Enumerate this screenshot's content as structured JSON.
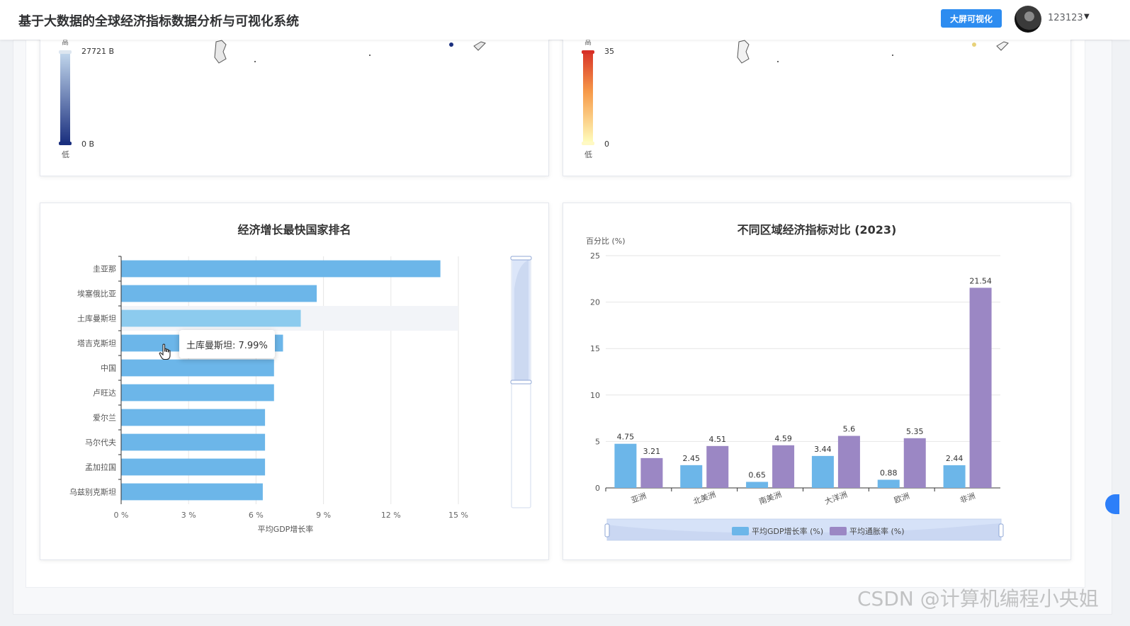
{
  "header": {
    "title": "基于大数据的全球经济指标数据分析与可视化系统",
    "screen_button": "大屏可视化",
    "username": "123123"
  },
  "maps": {
    "left": {
      "max_label": "27721 B",
      "min_label": "0 B",
      "low_label": "低",
      "high_label": "高",
      "colors": [
        "#c6dbef",
        "#1a2f7e"
      ]
    },
    "right": {
      "max_label": "35",
      "min_label": "0",
      "low_label": "低",
      "high_label": "高",
      "colors": [
        "#d73027",
        "#ffffbf"
      ]
    }
  },
  "left_chart": {
    "title": "经济增长最快国家排名",
    "tooltip": "土库曼斯坦: 7.99%"
  },
  "right_chart": {
    "title": "不同区域经济指标对比 (2023)"
  },
  "watermark": "CSDN @计算机编程小央姐",
  "chart_data": [
    {
      "type": "bar",
      "orientation": "horizontal",
      "title": "经济增长最快国家排名",
      "xlabel": "平均GDP增长率",
      "xlim": [
        0,
        15
      ],
      "xticks": [
        "0 %",
        "3 %",
        "6 %",
        "9 %",
        "12 %",
        "15 %"
      ],
      "categories": [
        "圭亚那",
        "埃塞俄比亚",
        "土库曼斯坦",
        "塔吉克斯坦",
        "中国",
        "卢旺达",
        "爱尔兰",
        "马尔代夫",
        "孟加拉国",
        "乌兹别克斯坦"
      ],
      "values": [
        14.2,
        8.7,
        7.99,
        7.2,
        6.8,
        6.8,
        6.4,
        6.4,
        6.4,
        6.3
      ],
      "highlighted": "土库曼斯坦",
      "color": "#6cb6e9",
      "grid": true,
      "data_zoom": "vertical slider, right"
    },
    {
      "type": "bar",
      "title": "不同区域经济指标对比 (2023)",
      "ylabel": "百分比 (%)",
      "ylim": [
        0,
        25
      ],
      "yticks": [
        0,
        5,
        10,
        15,
        20,
        25
      ],
      "categories": [
        "亚洲",
        "北美洲",
        "南美洲",
        "大洋洲",
        "欧洲",
        "非洲"
      ],
      "series": [
        {
          "name": "平均GDP增长率 (%)",
          "values": [
            4.75,
            2.45,
            0.65,
            3.44,
            0.88,
            2.44
          ],
          "color": "#6cb6e9"
        },
        {
          "name": "平均通胀率 (%)",
          "values": [
            3.21,
            4.51,
            4.59,
            5.6,
            5.35,
            21.54
          ],
          "color": "#9b87c4"
        }
      ],
      "legend": "bottom",
      "grid": true,
      "data_zoom": "horizontal slider, bottom"
    }
  ]
}
